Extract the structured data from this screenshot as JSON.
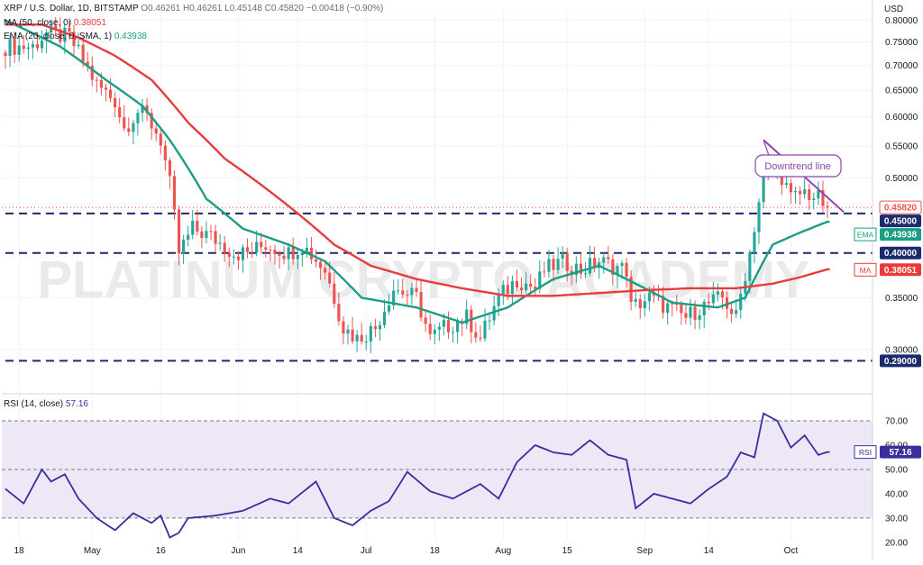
{
  "header": {
    "symbol": "XRP / U.S. Dollar, 1D, BITSTAMP",
    "ohlc": "O0.46261 H0.46261 L0.45148 C0.45820 −0.00418 (−0.90%)",
    "ma_label": "MA (50, close, 0)",
    "ma_value": "0.38051",
    "ema_label": "EMA (20, close, 0, SMA, 1)",
    "ema_value": "0.43938",
    "currency": "USD"
  },
  "watermark": "PLATINUM CRYPTO ACADEMY",
  "colors": {
    "up": "#26a69a",
    "down": "#ef5350",
    "ema": "#1b9e83",
    "ma": "#e83c3c",
    "rsi": "#3a2e9c",
    "rsi_band": "#ede7f6",
    "level_line": "#1c2b6b",
    "trendline": "#8e44ad"
  },
  "chart_data": [
    {
      "type": "candlestick",
      "title": "XRP / U.S. Dollar, 1D, BITSTAMP",
      "x_ticks": [
        "18",
        "May",
        "16",
        "Jun",
        "14",
        "Jul",
        "18",
        "Aug",
        "15",
        "Sep",
        "14",
        "Oct"
      ],
      "y_ticks": [
        "0.80000",
        "0.75000",
        "0.70000",
        "0.65000",
        "0.60000",
        "0.55000",
        "0.50000",
        "0.45000",
        "0.40000",
        "0.35000",
        "0.30000",
        "0.29000"
      ],
      "ylim": [
        0.265,
        0.81
      ],
      "scale": "log",
      "keyframes": [
        [
          0,
          0.74
        ],
        [
          6,
          0.74
        ],
        [
          9,
          0.77
        ],
        [
          14,
          0.76
        ],
        [
          20,
          0.66
        ],
        [
          24,
          0.63
        ],
        [
          26,
          0.58
        ],
        [
          29,
          0.61
        ],
        [
          31,
          0.6
        ],
        [
          34,
          0.56
        ],
        [
          36,
          0.49
        ],
        [
          38,
          0.4
        ],
        [
          41,
          0.43
        ],
        [
          45,
          0.42
        ],
        [
          50,
          0.4
        ],
        [
          53,
          0.4
        ],
        [
          57,
          0.41
        ],
        [
          62,
          0.4
        ],
        [
          65,
          0.41
        ],
        [
          70,
          0.38
        ],
        [
          74,
          0.32
        ],
        [
          77,
          0.31
        ],
        [
          81,
          0.32
        ],
        [
          85,
          0.36
        ],
        [
          90,
          0.35
        ],
        [
          93,
          0.31
        ],
        [
          96,
          0.32
        ],
        [
          101,
          0.33
        ],
        [
          104,
          0.31
        ],
        [
          108,
          0.35
        ],
        [
          112,
          0.37
        ],
        [
          116,
          0.36
        ],
        [
          118,
          0.38
        ],
        [
          122,
          0.39
        ],
        [
          126,
          0.38
        ],
        [
          130,
          0.39
        ],
        [
          136,
          0.38
        ],
        [
          137,
          0.34
        ],
        [
          141,
          0.35
        ],
        [
          145,
          0.34
        ],
        [
          149,
          0.33
        ],
        [
          152,
          0.34
        ],
        [
          157,
          0.35
        ],
        [
          160,
          0.33
        ],
        [
          163,
          0.4
        ],
        [
          166,
          0.5
        ],
        [
          169,
          0.52
        ],
        [
          172,
          0.47
        ],
        [
          175,
          0.48
        ],
        [
          178,
          0.47
        ],
        [
          180,
          0.458
        ]
      ],
      "series": [
        {
          "name": "EMA (20, close, 0, SMA, 1)",
          "last": 0.43938,
          "keyframes": [
            [
              0,
              0.8
            ],
            [
              12,
              0.74
            ],
            [
              22,
              0.67
            ],
            [
              30,
              0.62
            ],
            [
              36,
              0.56
            ],
            [
              44,
              0.47
            ],
            [
              52,
              0.43
            ],
            [
              62,
              0.41
            ],
            [
              70,
              0.39
            ],
            [
              78,
              0.35
            ],
            [
              90,
              0.34
            ],
            [
              100,
              0.325
            ],
            [
              110,
              0.34
            ],
            [
              120,
              0.37
            ],
            [
              130,
              0.385
            ],
            [
              136,
              0.37
            ],
            [
              146,
              0.345
            ],
            [
              156,
              0.34
            ],
            [
              162,
              0.35
            ],
            [
              168,
              0.41
            ],
            [
              174,
              0.425
            ],
            [
              180,
              0.439
            ]
          ]
        },
        {
          "name": "MA (50, close, 0)",
          "last": 0.38051,
          "keyframes": [
            [
              0,
              0.79
            ],
            [
              8,
              0.79
            ],
            [
              16,
              0.76
            ],
            [
              24,
              0.72
            ],
            [
              32,
              0.67
            ],
            [
              40,
              0.59
            ],
            [
              48,
              0.53
            ],
            [
              56,
              0.49
            ],
            [
              64,
              0.45
            ],
            [
              72,
              0.41
            ],
            [
              80,
              0.385
            ],
            [
              90,
              0.37
            ],
            [
              100,
              0.36
            ],
            [
              110,
              0.352
            ],
            [
              120,
              0.352
            ],
            [
              130,
              0.355
            ],
            [
              140,
              0.358
            ],
            [
              150,
              0.36
            ],
            [
              160,
              0.36
            ],
            [
              168,
              0.365
            ],
            [
              174,
              0.372
            ],
            [
              180,
              0.381
            ]
          ]
        }
      ],
      "levels": [
        {
          "price": 0.45,
          "label": "0.45000"
        },
        {
          "price": 0.4,
          "label": "0.40000"
        },
        {
          "price": 0.29,
          "label": "0.29000"
        }
      ],
      "price_tags": [
        {
          "label": "0.45820",
          "name": "last-price-tag",
          "price": 0.4582
        },
        {
          "label": "0.45000",
          "name": "support-tag-045",
          "price": 0.45
        },
        {
          "label": "0.43938",
          "name": "ema-value-tag",
          "price": 0.43938,
          "tag": "EMA"
        },
        {
          "label": "0.40000",
          "name": "support-tag-040",
          "price": 0.4
        },
        {
          "label": "0.38051",
          "name": "ma-value-tag",
          "price": 0.38051,
          "tag": "MA"
        },
        {
          "label": "0.29000",
          "name": "support-tag-029",
          "price": 0.29
        }
      ],
      "annotation": {
        "text": "Downtrend line",
        "from": [
          166,
          0.56
        ],
        "to": [
          180,
          0.452
        ]
      }
    },
    {
      "type": "line",
      "title": "RSI (14, close)",
      "last_label": "57.16",
      "last": 57.16,
      "ylim": [
        17,
        80
      ],
      "y_ticks": [
        "70.00",
        "60.00",
        "50.00",
        "40.00",
        "30.00",
        "20.00"
      ],
      "overbought": 70,
      "oversold": 30,
      "mid": 50,
      "keyframes": [
        [
          0,
          42
        ],
        [
          4,
          36
        ],
        [
          8,
          50
        ],
        [
          10,
          45
        ],
        [
          13,
          48
        ],
        [
          16,
          38
        ],
        [
          20,
          30
        ],
        [
          24,
          25
        ],
        [
          28,
          32
        ],
        [
          32,
          28
        ],
        [
          34,
          31
        ],
        [
          36,
          22
        ],
        [
          38,
          24
        ],
        [
          40,
          30
        ],
        [
          46,
          31
        ],
        [
          52,
          33
        ],
        [
          58,
          38
        ],
        [
          62,
          36
        ],
        [
          68,
          45
        ],
        [
          72,
          30
        ],
        [
          76,
          27
        ],
        [
          80,
          33
        ],
        [
          84,
          37
        ],
        [
          88,
          49
        ],
        [
          93,
          41
        ],
        [
          98,
          38
        ],
        [
          104,
          44
        ],
        [
          108,
          38
        ],
        [
          112,
          53
        ],
        [
          116,
          60
        ],
        [
          120,
          57
        ],
        [
          124,
          56
        ],
        [
          128,
          62
        ],
        [
          132,
          56
        ],
        [
          136,
          54
        ],
        [
          138,
          34
        ],
        [
          142,
          40
        ],
        [
          146,
          38
        ],
        [
          150,
          36
        ],
        [
          154,
          42
        ],
        [
          158,
          47
        ],
        [
          161,
          57
        ],
        [
          164,
          55
        ],
        [
          166,
          73
        ],
        [
          169,
          70
        ],
        [
          172,
          59
        ],
        [
          175,
          64
        ],
        [
          178,
          56
        ],
        [
          180,
          57.16
        ]
      ]
    }
  ]
}
